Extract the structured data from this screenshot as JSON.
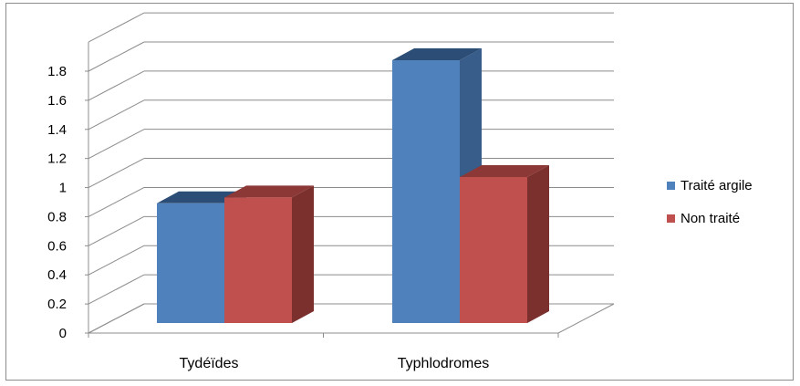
{
  "chart_data": {
    "type": "bar",
    "categories": [
      "Tydéïdes",
      "Typhlodromes"
    ],
    "series": [
      {
        "name": "Traité argile",
        "values": [
          0.82,
          1.8
        ],
        "color": "#4f81bd",
        "side_color": "#385d8a",
        "top_color": "#2c4d75"
      },
      {
        "name": "Non traité",
        "values": [
          0.86,
          1.0
        ],
        "color": "#c0504d",
        "side_color": "#7b302e",
        "top_color": "#8c3836"
      }
    ],
    "y_ticks": [
      "0",
      "0.2",
      "0.4",
      "0.6",
      "0.8",
      "1",
      "1.2",
      "1.4",
      "1.6",
      "1.8"
    ],
    "ylim": [
      0,
      1.8
    ],
    "grid": true,
    "three_d": true,
    "legend_position": "right",
    "title": "",
    "xlabel": "",
    "ylabel": ""
  }
}
